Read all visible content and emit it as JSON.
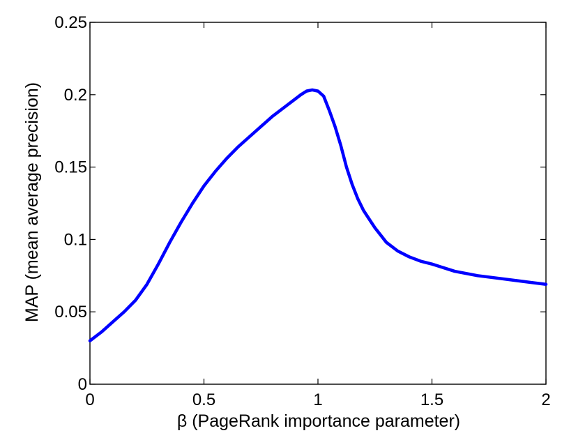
{
  "chart_data": {
    "type": "line",
    "title": "",
    "xlabel": "β (PageRank importance parameter)",
    "ylabel": "MAP (mean average precision)",
    "xlim": [
      0,
      2
    ],
    "ylim": [
      0,
      0.25
    ],
    "grid": false,
    "x_ticks": [
      0,
      0.5,
      1,
      1.5,
      2
    ],
    "x_tick_labels": [
      "0",
      "0.5",
      "1",
      "1.5",
      "2"
    ],
    "y_ticks": [
      0,
      0.05,
      0.1,
      0.15,
      0.2,
      0.25
    ],
    "y_tick_labels": [
      "0",
      "0.05",
      "0.1",
      "0.15",
      "0.2",
      "0.25"
    ],
    "line_color": "#0000ff",
    "series": [
      {
        "x": [
          0,
          0.05,
          0.1,
          0.15,
          0.2,
          0.25,
          0.3,
          0.35,
          0.4,
          0.45,
          0.5,
          0.55,
          0.6,
          0.65,
          0.7,
          0.75,
          0.8,
          0.85,
          0.9,
          0.925,
          0.95,
          0.975,
          1.0,
          1.025,
          1.05,
          1.075,
          1.1,
          1.125,
          1.15,
          1.175,
          1.2,
          1.225,
          1.25,
          1.3,
          1.35,
          1.4,
          1.45,
          1.5,
          1.6,
          1.7,
          1.8,
          1.9,
          2.0
        ],
        "y": [
          0.03,
          0.036,
          0.043,
          0.05,
          0.058,
          0.069,
          0.083,
          0.098,
          0.112,
          0.125,
          0.137,
          0.147,
          0.156,
          0.164,
          0.171,
          0.178,
          0.185,
          0.191,
          0.197,
          0.2,
          0.2025,
          0.2033,
          0.2025,
          0.199,
          0.189,
          0.178,
          0.165,
          0.15,
          0.138,
          0.128,
          0.12,
          0.114,
          0.108,
          0.098,
          0.092,
          0.088,
          0.085,
          0.083,
          0.078,
          0.075,
          0.073,
          0.071,
          0.069
        ]
      }
    ]
  }
}
